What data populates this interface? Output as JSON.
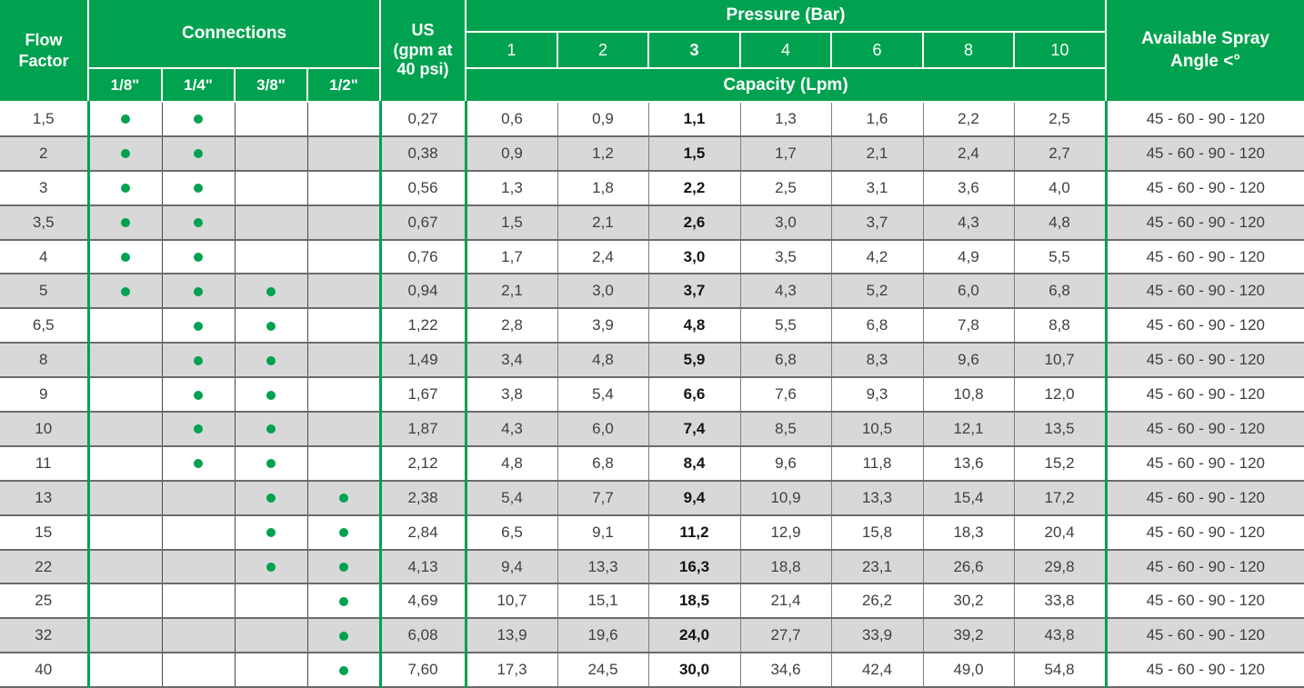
{
  "colors": {
    "accent_green": "#00A24F",
    "stripe_gray": "#D8D8D8",
    "row_border_gray": "#6B6B6B",
    "data_text": "#3F3F3F"
  },
  "table": {
    "headers": {
      "flow_factor": "Flow\nFactor",
      "connections": "Connections",
      "connection_sizes": [
        "1/8\"",
        "1/4\"",
        "3/8\"",
        "1/2\""
      ],
      "us_gpm": "US\n(gpm at\n40 psi)",
      "pressure": "Pressure (Bar)",
      "pressure_values": [
        "1",
        "2",
        "3",
        "4",
        "6",
        "8",
        "10"
      ],
      "capacity": "Capacity (Lpm)",
      "spray_angle": "Available Spray\nAngle  <°"
    },
    "rows": [
      {
        "flow_factor": "1,5",
        "connections": [
          true,
          true,
          false,
          false
        ],
        "us_gpm": "0,27",
        "capacities": [
          "0,6",
          "0,9",
          "1,1",
          "1,3",
          "1,6",
          "2,2",
          "2,5"
        ],
        "spray_angle": "45 - 60 - 90 - 120"
      },
      {
        "flow_factor": "2",
        "connections": [
          true,
          true,
          false,
          false
        ],
        "us_gpm": "0,38",
        "capacities": [
          "0,9",
          "1,2",
          "1,5",
          "1,7",
          "2,1",
          "2,4",
          "2,7"
        ],
        "spray_angle": "45 - 60 - 90 - 120"
      },
      {
        "flow_factor": "3",
        "connections": [
          true,
          true,
          false,
          false
        ],
        "us_gpm": "0,56",
        "capacities": [
          "1,3",
          "1,8",
          "2,2",
          "2,5",
          "3,1",
          "3,6",
          "4,0"
        ],
        "spray_angle": "45 - 60 - 90 - 120"
      },
      {
        "flow_factor": "3,5",
        "connections": [
          true,
          true,
          false,
          false
        ],
        "us_gpm": "0,67",
        "capacities": [
          "1,5",
          "2,1",
          "2,6",
          "3,0",
          "3,7",
          "4,3",
          "4,8"
        ],
        "spray_angle": "45 - 60 - 90 - 120"
      },
      {
        "flow_factor": "4",
        "connections": [
          true,
          true,
          false,
          false
        ],
        "us_gpm": "0,76",
        "capacities": [
          "1,7",
          "2,4",
          "3,0",
          "3,5",
          "4,2",
          "4,9",
          "5,5"
        ],
        "spray_angle": "45 - 60 - 90 - 120"
      },
      {
        "flow_factor": "5",
        "connections": [
          true,
          true,
          true,
          false
        ],
        "us_gpm": "0,94",
        "capacities": [
          "2,1",
          "3,0",
          "3,7",
          "4,3",
          "5,2",
          "6,0",
          "6,8"
        ],
        "spray_angle": "45 - 60 - 90 - 120"
      },
      {
        "flow_factor": "6,5",
        "connections": [
          false,
          true,
          true,
          false
        ],
        "us_gpm": "1,22",
        "capacities": [
          "2,8",
          "3,9",
          "4,8",
          "5,5",
          "6,8",
          "7,8",
          "8,8"
        ],
        "spray_angle": "45 - 60 - 90 - 120"
      },
      {
        "flow_factor": "8",
        "connections": [
          false,
          true,
          true,
          false
        ],
        "us_gpm": "1,49",
        "capacities": [
          "3,4",
          "4,8",
          "5,9",
          "6,8",
          "8,3",
          "9,6",
          "10,7"
        ],
        "spray_angle": "45 - 60 - 90 - 120"
      },
      {
        "flow_factor": "9",
        "connections": [
          false,
          true,
          true,
          false
        ],
        "us_gpm": "1,67",
        "capacities": [
          "3,8",
          "5,4",
          "6,6",
          "7,6",
          "9,3",
          "10,8",
          "12,0"
        ],
        "spray_angle": "45 - 60 - 90 - 120"
      },
      {
        "flow_factor": "10",
        "connections": [
          false,
          true,
          true,
          false
        ],
        "us_gpm": "1,87",
        "capacities": [
          "4,3",
          "6,0",
          "7,4",
          "8,5",
          "10,5",
          "12,1",
          "13,5"
        ],
        "spray_angle": "45 - 60 - 90 - 120"
      },
      {
        "flow_factor": "11",
        "connections": [
          false,
          true,
          true,
          false
        ],
        "us_gpm": "2,12",
        "capacities": [
          "4,8",
          "6,8",
          "8,4",
          "9,6",
          "11,8",
          "13,6",
          "15,2"
        ],
        "spray_angle": "45 - 60 - 90 - 120"
      },
      {
        "flow_factor": "13",
        "connections": [
          false,
          false,
          true,
          true
        ],
        "us_gpm": "2,38",
        "capacities": [
          "5,4",
          "7,7",
          "9,4",
          "10,9",
          "13,3",
          "15,4",
          "17,2"
        ],
        "spray_angle": "45 - 60 - 90 - 120"
      },
      {
        "flow_factor": "15",
        "connections": [
          false,
          false,
          true,
          true
        ],
        "us_gpm": "2,84",
        "capacities": [
          "6,5",
          "9,1",
          "11,2",
          "12,9",
          "15,8",
          "18,3",
          "20,4"
        ],
        "spray_angle": "45 - 60 - 90 - 120"
      },
      {
        "flow_factor": "22",
        "connections": [
          false,
          false,
          true,
          true
        ],
        "us_gpm": "4,13",
        "capacities": [
          "9,4",
          "13,3",
          "16,3",
          "18,8",
          "23,1",
          "26,6",
          "29,8"
        ],
        "spray_angle": "45 - 60 - 90 - 120"
      },
      {
        "flow_factor": "25",
        "connections": [
          false,
          false,
          false,
          true
        ],
        "us_gpm": "4,69",
        "capacities": [
          "10,7",
          "15,1",
          "18,5",
          "21,4",
          "26,2",
          "30,2",
          "33,8"
        ],
        "spray_angle": "45 - 60 - 90 - 120"
      },
      {
        "flow_factor": "32",
        "connections": [
          false,
          false,
          false,
          true
        ],
        "us_gpm": "6,08",
        "capacities": [
          "13,9",
          "19,6",
          "24,0",
          "27,7",
          "33,9",
          "39,2",
          "43,8"
        ],
        "spray_angle": "45 - 60 - 90 - 120"
      },
      {
        "flow_factor": "40",
        "connections": [
          false,
          false,
          false,
          true
        ],
        "us_gpm": "7,60",
        "capacities": [
          "17,3",
          "24,5",
          "30,0",
          "34,6",
          "42,4",
          "49,0",
          "54,8"
        ],
        "spray_angle": "45 - 60 - 90 - 120"
      }
    ]
  }
}
